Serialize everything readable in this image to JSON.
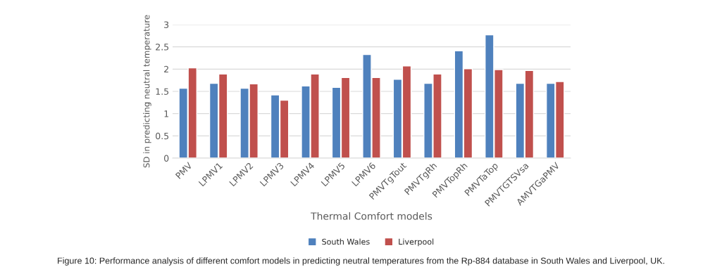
{
  "chart_data": {
    "type": "bar",
    "xlabel": "Thermal Comfort models",
    "ylabel": "SD in predicting neutral temperature",
    "categories": [
      "PMV",
      "LPMV1",
      "LPMV2",
      "LPMV3",
      "LPMV4",
      "LPMV5",
      "LPMV6",
      "PMVTgTout",
      "PMVTgRh",
      "PMVTopRh",
      "PMVTaTop",
      "PMVTGTSVsa",
      "AMVTGaPMV"
    ],
    "series": [
      {
        "name": "South Wales",
        "color": "#4f81bd",
        "values": [
          1.57,
          1.68,
          1.57,
          1.42,
          1.62,
          1.59,
          2.33,
          1.77,
          1.68,
          2.41,
          2.77,
          1.68,
          1.68
        ]
      },
      {
        "name": "Liverpool",
        "color": "#c0504d",
        "values": [
          2.03,
          1.89,
          1.67,
          1.3,
          1.89,
          1.81,
          1.81,
          2.07,
          1.89,
          2.01,
          1.99,
          1.97,
          1.72
        ]
      }
    ],
    "ylim": [
      0,
      3
    ],
    "yticks": [
      0,
      0.5,
      1,
      1.5,
      2,
      2.5,
      3
    ],
    "grid": "y",
    "legend": "bottom",
    "annotations": [
      "Figure 10: Performance analysis of different comfort models in predicting neutral temperatures from the Rp-884 database in South Wales and Liverpool, UK."
    ]
  }
}
